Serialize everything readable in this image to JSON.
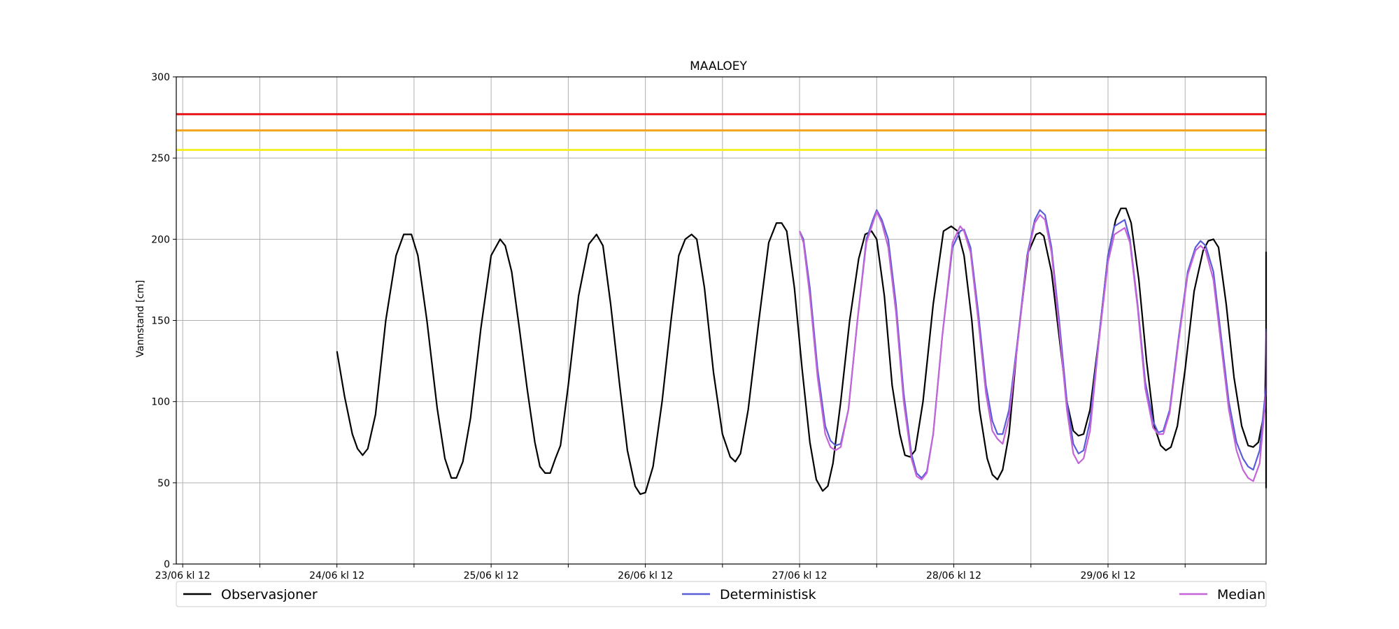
{
  "chart_data": {
    "type": "line",
    "title": "MAALOEY",
    "xlabel": "",
    "ylabel": "Vannstand [cm]",
    "ylim": [
      0,
      300
    ],
    "yticks": [
      0,
      50,
      100,
      150,
      200,
      250,
      300
    ],
    "xlim_hours": [
      -0.5,
      84.3
    ],
    "x_ticks": [
      {
        "hour": 0,
        "label": "23/06 kl 12"
      },
      {
        "hour": 6,
        "label": ""
      },
      {
        "hour": 12,
        "label": "24/06 kl 12"
      },
      {
        "hour": 18,
        "label": ""
      },
      {
        "hour": 24,
        "label": "25/06 kl 12"
      },
      {
        "hour": 30,
        "label": ""
      },
      {
        "hour": 36,
        "label": "26/06 kl 12"
      },
      {
        "hour": 42,
        "label": ""
      },
      {
        "hour": 48,
        "label": "27/06 kl 12"
      },
      {
        "hour": 54,
        "label": ""
      },
      {
        "hour": 60,
        "label": "28/06 kl 12"
      },
      {
        "hour": 66,
        "label": ""
      },
      {
        "hour": 72,
        "label": "29/06 kl 12"
      },
      {
        "hour": 78,
        "label": ""
      }
    ],
    "grid": true,
    "legend_position": "bottom",
    "thresholds": [
      {
        "value": 277,
        "color": "#e8161b"
      },
      {
        "value": 267,
        "color": "#f4a41d"
      },
      {
        "value": 255,
        "color": "#f5f02a"
      }
    ],
    "series": [
      {
        "name": "Observasjoner",
        "color": "#000000",
        "points": [
          [
            12,
            131
          ],
          [
            12.6,
            103
          ],
          [
            13.2,
            80
          ],
          [
            13.6,
            71
          ],
          [
            14.0,
            67
          ],
          [
            14.4,
            71
          ],
          [
            15.0,
            92
          ],
          [
            15.8,
            150
          ],
          [
            16.6,
            190
          ],
          [
            17.2,
            203
          ],
          [
            17.8,
            203
          ],
          [
            18.3,
            190
          ],
          [
            19.0,
            150
          ],
          [
            19.8,
            96
          ],
          [
            20.4,
            65
          ],
          [
            20.9,
            53
          ],
          [
            21.3,
            53
          ],
          [
            21.8,
            63
          ],
          [
            22.4,
            90
          ],
          [
            23.2,
            145
          ],
          [
            24.0,
            190
          ],
          [
            24.7,
            200
          ],
          [
            25.1,
            196
          ],
          [
            25.6,
            180
          ],
          [
            26.2,
            145
          ],
          [
            26.8,
            108
          ],
          [
            27.4,
            75
          ],
          [
            27.8,
            60
          ],
          [
            28.2,
            56
          ],
          [
            28.6,
            56
          ],
          [
            29.0,
            65
          ],
          [
            29.4,
            73
          ],
          [
            30.0,
            110
          ],
          [
            30.8,
            165
          ],
          [
            31.6,
            197
          ],
          [
            32.2,
            203
          ],
          [
            32.7,
            196
          ],
          [
            33.3,
            160
          ],
          [
            34.0,
            110
          ],
          [
            34.6,
            70
          ],
          [
            35.2,
            48
          ],
          [
            35.6,
            43
          ],
          [
            36.0,
            44
          ],
          [
            36.6,
            60
          ],
          [
            37.3,
            100
          ],
          [
            38.0,
            150
          ],
          [
            38.6,
            190
          ],
          [
            39.1,
            200
          ],
          [
            39.6,
            203
          ],
          [
            40.0,
            200
          ],
          [
            40.6,
            170
          ],
          [
            41.3,
            118
          ],
          [
            42.0,
            80
          ],
          [
            42.6,
            66
          ],
          [
            43.0,
            63
          ],
          [
            43.4,
            68
          ],
          [
            44.0,
            95
          ],
          [
            44.8,
            148
          ],
          [
            45.6,
            198
          ],
          [
            46.2,
            210
          ],
          [
            46.6,
            210
          ],
          [
            47.0,
            205
          ],
          [
            47.6,
            170
          ],
          [
            48.2,
            120
          ],
          [
            48.8,
            75
          ],
          [
            49.3,
            52
          ],
          [
            49.8,
            45
          ],
          [
            50.2,
            48
          ],
          [
            50.6,
            62
          ],
          [
            51.2,
            100
          ],
          [
            51.9,
            150
          ],
          [
            52.6,
            188
          ],
          [
            53.1,
            203
          ],
          [
            53.6,
            205
          ],
          [
            54.0,
            200
          ],
          [
            54.6,
            165
          ],
          [
            55.2,
            110
          ],
          [
            55.8,
            80
          ],
          [
            56.2,
            67
          ],
          [
            56.6,
            66
          ],
          [
            57.0,
            70
          ],
          [
            57.6,
            100
          ],
          [
            58.4,
            160
          ],
          [
            59.2,
            205
          ],
          [
            59.8,
            208
          ],
          [
            60.3,
            205
          ],
          [
            60.8,
            190
          ],
          [
            61.4,
            150
          ],
          [
            62.0,
            95
          ],
          [
            62.6,
            65
          ],
          [
            63.0,
            55
          ],
          [
            63.4,
            52
          ],
          [
            63.8,
            58
          ],
          [
            64.3,
            80
          ],
          [
            65.0,
            140
          ],
          [
            65.8,
            192
          ],
          [
            66.4,
            203
          ],
          [
            66.7,
            204
          ],
          [
            67.0,
            202
          ],
          [
            67.6,
            180
          ],
          [
            68.2,
            140
          ],
          [
            68.8,
            100
          ],
          [
            69.3,
            82
          ],
          [
            69.7,
            79
          ],
          [
            70.1,
            80
          ],
          [
            70.6,
            95
          ],
          [
            71.3,
            140
          ],
          [
            72.0,
            190
          ],
          [
            72.6,
            212
          ],
          [
            73.0,
            219
          ],
          [
            73.4,
            219
          ],
          [
            73.8,
            210
          ],
          [
            74.4,
            175
          ],
          [
            75.0,
            125
          ],
          [
            75.6,
            85
          ],
          [
            76.1,
            73
          ],
          [
            76.5,
            70
          ],
          [
            76.9,
            72
          ],
          [
            77.4,
            85
          ],
          [
            78.0,
            120
          ],
          [
            78.7,
            168
          ],
          [
            79.4,
            193
          ],
          [
            79.8,
            199
          ],
          [
            80.2,
            200
          ],
          [
            80.6,
            195
          ],
          [
            81.2,
            160
          ],
          [
            81.8,
            115
          ],
          [
            82.4,
            85
          ],
          [
            82.9,
            73
          ],
          [
            83.3,
            72
          ],
          [
            83.7,
            75
          ],
          [
            84.2,
            95
          ],
          [
            84.8,
            140
          ],
          [
            85.4,
            178
          ],
          [
            85.9,
            190
          ],
          [
            86.3,
            192
          ],
          [
            86.8,
            185
          ],
          [
            87.4,
            150
          ],
          [
            88.0,
            105
          ],
          [
            88.6,
            68
          ],
          [
            89.1,
            52
          ],
          [
            89.5,
            47
          ],
          [
            89.9,
            48
          ],
          [
            90.4,
            62
          ],
          [
            91.0,
            95
          ],
          [
            91.6,
            130
          ],
          [
            92.0,
            153
          ]
        ]
      },
      {
        "name": "Deterministisk",
        "color": "#5a5dd8",
        "points": [
          [
            48,
            205
          ],
          [
            48.3,
            200
          ],
          [
            48.8,
            170
          ],
          [
            49.4,
            120
          ],
          [
            50.0,
            85
          ],
          [
            50.4,
            76
          ],
          [
            50.8,
            73
          ],
          [
            51.2,
            74
          ],
          [
            51.8,
            95
          ],
          [
            52.5,
            150
          ],
          [
            53.2,
            200
          ],
          [
            53.7,
            212
          ],
          [
            54.0,
            218
          ],
          [
            54.4,
            212
          ],
          [
            54.9,
            200
          ],
          [
            55.5,
            160
          ],
          [
            56.1,
            105
          ],
          [
            56.7,
            68
          ],
          [
            57.1,
            56
          ],
          [
            57.5,
            53
          ],
          [
            57.9,
            57
          ],
          [
            58.4,
            80
          ],
          [
            59.1,
            140
          ],
          [
            59.9,
            195
          ],
          [
            60.5,
            205
          ],
          [
            60.8,
            206
          ],
          [
            61.3,
            195
          ],
          [
            61.9,
            155
          ],
          [
            62.5,
            110
          ],
          [
            63.0,
            88
          ],
          [
            63.4,
            80
          ],
          [
            63.8,
            80
          ],
          [
            64.3,
            95
          ],
          [
            65.0,
            140
          ],
          [
            65.7,
            190
          ],
          [
            66.3,
            212
          ],
          [
            66.7,
            218
          ],
          [
            67.1,
            215
          ],
          [
            67.6,
            195
          ],
          [
            68.2,
            150
          ],
          [
            68.8,
            100
          ],
          [
            69.3,
            74
          ],
          [
            69.7,
            68
          ],
          [
            70.1,
            70
          ],
          [
            70.6,
            88
          ],
          [
            71.3,
            140
          ],
          [
            72.0,
            190
          ],
          [
            72.5,
            208
          ],
          [
            72.9,
            210
          ],
          [
            73.3,
            212
          ],
          [
            73.7,
            200
          ],
          [
            74.3,
            160
          ],
          [
            74.9,
            112
          ],
          [
            75.5,
            88
          ],
          [
            75.9,
            81
          ],
          [
            76.3,
            82
          ],
          [
            76.8,
            95
          ],
          [
            77.5,
            140
          ],
          [
            78.2,
            180
          ],
          [
            78.8,
            195
          ],
          [
            79.2,
            199
          ],
          [
            79.6,
            196
          ],
          [
            80.2,
            180
          ],
          [
            80.8,
            140
          ],
          [
            81.4,
            100
          ],
          [
            82.0,
            75
          ],
          [
            82.5,
            65
          ],
          [
            82.9,
            60
          ],
          [
            83.3,
            58
          ],
          [
            83.8,
            70
          ],
          [
            84.5,
            110
          ],
          [
            85.0,
            145
          ]
        ]
      },
      {
        "name": "Median",
        "color": "#c564d9",
        "points": [
          [
            48,
            205
          ],
          [
            48.3,
            198
          ],
          [
            48.8,
            165
          ],
          [
            49.4,
            115
          ],
          [
            50.0,
            80
          ],
          [
            50.4,
            72
          ],
          [
            50.8,
            70
          ],
          [
            51.2,
            72
          ],
          [
            51.8,
            95
          ],
          [
            52.5,
            150
          ],
          [
            53.2,
            198
          ],
          [
            53.7,
            210
          ],
          [
            54.0,
            217
          ],
          [
            54.4,
            210
          ],
          [
            54.9,
            195
          ],
          [
            55.5,
            155
          ],
          [
            56.1,
            100
          ],
          [
            56.7,
            65
          ],
          [
            57.1,
            54
          ],
          [
            57.5,
            52
          ],
          [
            57.9,
            56
          ],
          [
            58.4,
            80
          ],
          [
            59.1,
            140
          ],
          [
            59.9,
            198
          ],
          [
            60.5,
            208
          ],
          [
            60.8,
            205
          ],
          [
            61.3,
            192
          ],
          [
            61.9,
            150
          ],
          [
            62.5,
            105
          ],
          [
            63.0,
            82
          ],
          [
            63.4,
            77
          ],
          [
            63.8,
            74
          ],
          [
            64.3,
            90
          ],
          [
            65.0,
            138
          ],
          [
            65.7,
            188
          ],
          [
            66.3,
            210
          ],
          [
            66.7,
            215
          ],
          [
            67.1,
            212
          ],
          [
            67.6,
            192
          ],
          [
            68.2,
            145
          ],
          [
            68.8,
            95
          ],
          [
            69.3,
            68
          ],
          [
            69.7,
            62
          ],
          [
            70.1,
            65
          ],
          [
            70.6,
            82
          ],
          [
            71.3,
            138
          ],
          [
            72.0,
            186
          ],
          [
            72.5,
            203
          ],
          [
            72.9,
            205
          ],
          [
            73.3,
            207
          ],
          [
            73.7,
            198
          ],
          [
            74.3,
            158
          ],
          [
            74.9,
            108
          ],
          [
            75.5,
            84
          ],
          [
            75.9,
            80
          ],
          [
            76.3,
            80
          ],
          [
            76.8,
            93
          ],
          [
            77.5,
            138
          ],
          [
            78.2,
            178
          ],
          [
            78.8,
            193
          ],
          [
            79.2,
            196
          ],
          [
            79.6,
            193
          ],
          [
            80.2,
            175
          ],
          [
            80.8,
            135
          ],
          [
            81.4,
            95
          ],
          [
            82.0,
            70
          ],
          [
            82.5,
            58
          ],
          [
            82.9,
            53
          ],
          [
            83.3,
            51
          ],
          [
            83.8,
            62
          ],
          [
            84.5,
            105
          ],
          [
            85.0,
            143
          ]
        ]
      }
    ]
  }
}
